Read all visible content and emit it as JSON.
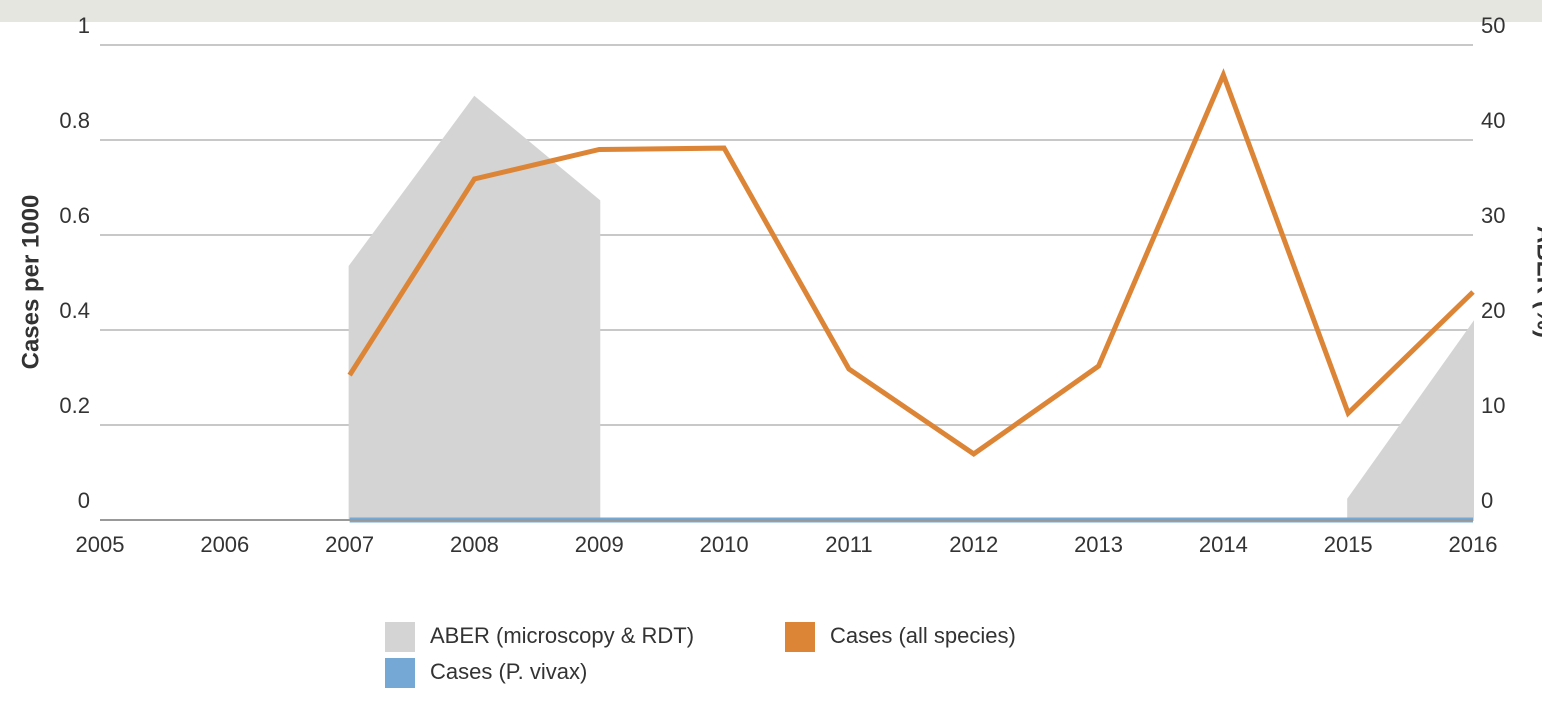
{
  "chart_data": {
    "type": "line",
    "x": [
      2005,
      2006,
      2007,
      2008,
      2009,
      2010,
      2011,
      2012,
      2013,
      2014,
      2015,
      2016
    ],
    "xlim": [
      2005,
      2016
    ],
    "xticks": [
      2005,
      2006,
      2007,
      2008,
      2009,
      2010,
      2011,
      2012,
      2013,
      2014,
      2015,
      2016
    ],
    "ylabel": "Cases per 1000",
    "ylim": [
      0,
      1
    ],
    "yticks": [
      0,
      0.2,
      0.4,
      0.6,
      0.8,
      1
    ],
    "y2label": "ABER (%)",
    "y2lim": [
      0,
      50
    ],
    "y2ticks": [
      0,
      10,
      20,
      30,
      40,
      50
    ],
    "grid": true,
    "legend": "bottom",
    "series": [
      {
        "name": "ABER (microscopy & RDT)",
        "kind": "area",
        "axis": "y2",
        "color": "#d4d4d4",
        "values": [
          null,
          null,
          26.7,
          44.5,
          33.6,
          null,
          null,
          null,
          null,
          null,
          2.2,
          20.7
        ]
      },
      {
        "name": "Cases (all species)",
        "kind": "line",
        "axis": "y",
        "color": "#dd8537",
        "values": [
          null,
          null,
          0.305,
          0.718,
          0.78,
          0.783,
          0.318,
          0.139,
          0.324,
          0.937,
          0.225,
          0.48
        ]
      },
      {
        "name": "Cases (P. vivax)",
        "kind": "line",
        "axis": "y",
        "color": "#76a8d6",
        "values": [
          null,
          null,
          0,
          0,
          0,
          0,
          0,
          0,
          0,
          0,
          0,
          0
        ]
      }
    ]
  }
}
